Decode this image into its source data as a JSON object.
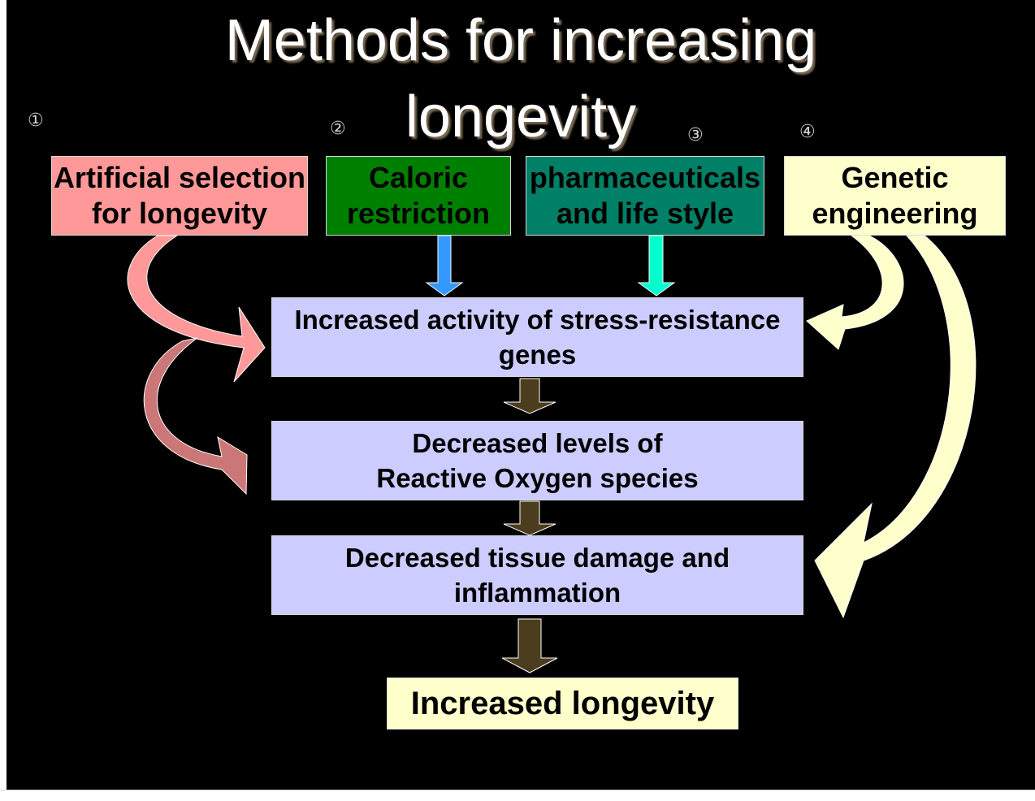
{
  "title": {
    "line1": "Methods for increasing",
    "line2": "longevity"
  },
  "methods": [
    {
      "number": "①",
      "line1": "Artificial selection",
      "line2": "for longevity",
      "bg": "#ff9999",
      "color": "#000000"
    },
    {
      "number": "②",
      "line1": "Caloric",
      "line2": "restriction",
      "bg": "#008000",
      "color": "#000000"
    },
    {
      "number": "③",
      "line1": "pharmaceuticals",
      "line2": "and life style",
      "bg": "#008066",
      "color": "#000000"
    },
    {
      "number": "④",
      "line1": "Genetic",
      "line2": "engineering",
      "bg": "#ffffcc",
      "color": "#000000"
    }
  ],
  "flow": [
    {
      "line1": "Increased activity of stress-resistance",
      "line2": "genes"
    },
    {
      "line1": "Decreased levels of",
      "line2": "Reactive Oxygen species"
    },
    {
      "line1": "Decreased tissue damage and",
      "line2": "inflammation"
    }
  ],
  "outcome": {
    "label": "Increased longevity",
    "bg": "#ffffcc"
  },
  "colors": {
    "pink_arrow": "#ff9999",
    "blue_arrow": "#3399ff",
    "cyan_arrow": "#00ffcc",
    "yellow_arrow": "#ffffcc",
    "down_arrow": "#4d3d1f"
  }
}
